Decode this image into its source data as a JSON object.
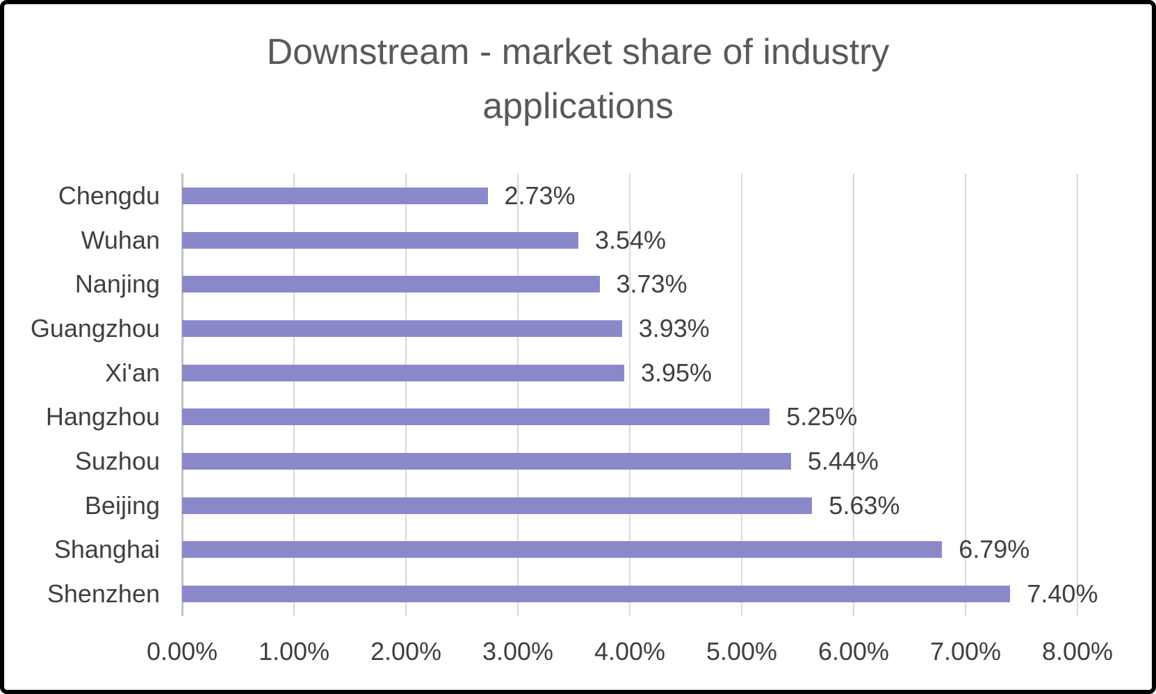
{
  "chart_data": {
    "type": "bar",
    "orientation": "horizontal",
    "title": "Downstream - market share of industry applications",
    "categories": [
      "Chengdu",
      "Wuhan",
      "Nanjing",
      "Guangzhou",
      "Xi'an",
      "Hangzhou",
      "Suzhou",
      "Beijing",
      "Shanghai",
      "Shenzhen"
    ],
    "values": [
      2.73,
      3.54,
      3.73,
      3.93,
      3.95,
      5.25,
      5.44,
      5.63,
      6.79,
      7.4
    ],
    "data_labels": [
      "2.73%",
      "3.54%",
      "3.73%",
      "3.93%",
      "3.95%",
      "5.25%",
      "5.44%",
      "5.63%",
      "6.79%",
      "7.40%"
    ],
    "x_tick_labels": [
      "0.00%",
      "1.00%",
      "2.00%",
      "3.00%",
      "4.00%",
      "5.00%",
      "6.00%",
      "7.00%",
      "8.00%"
    ],
    "xlim": [
      0,
      8
    ],
    "grid": "vertical-only",
    "legend": "none",
    "colors": {
      "bar_fill": "#8b88ca",
      "gridline": "#d9d9d9",
      "axis_line": "#c3c3c3",
      "title_text": "#595959",
      "label_text": "#3f3f3f",
      "frame_border": "#000000",
      "background": "#ffffff"
    }
  }
}
